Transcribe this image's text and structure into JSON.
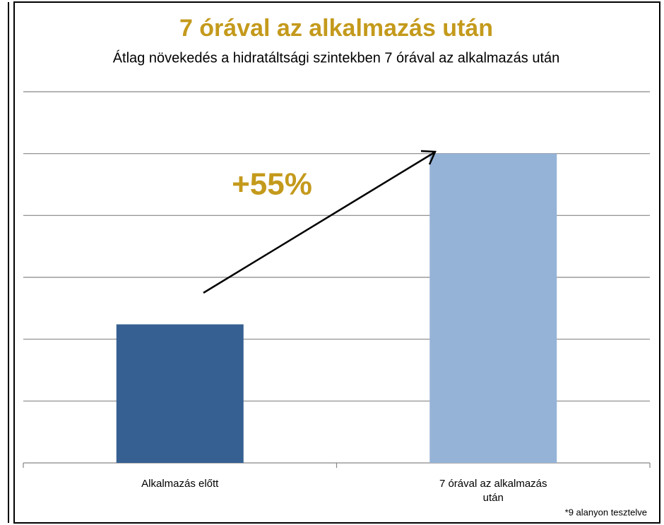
{
  "chart_data": {
    "type": "bar",
    "title": "7 órával az alkalmazás után",
    "subtitle": "Átlag növekedés a hidratáltsági szintekben 7 órával az alkalmazás után",
    "categories": [
      "Alkalmazás előtt",
      "7 órával az alkalmazás után"
    ],
    "values": [
      2.24,
      5.0
    ],
    "colors": [
      "#376092",
      "#95b3d7"
    ],
    "ylim": [
      0,
      6
    ],
    "yticks": [
      0,
      1,
      2,
      3,
      4,
      5,
      6
    ],
    "grid": true,
    "annotation": "+55%",
    "footnote": "*9 alanyon tesztelve"
  }
}
